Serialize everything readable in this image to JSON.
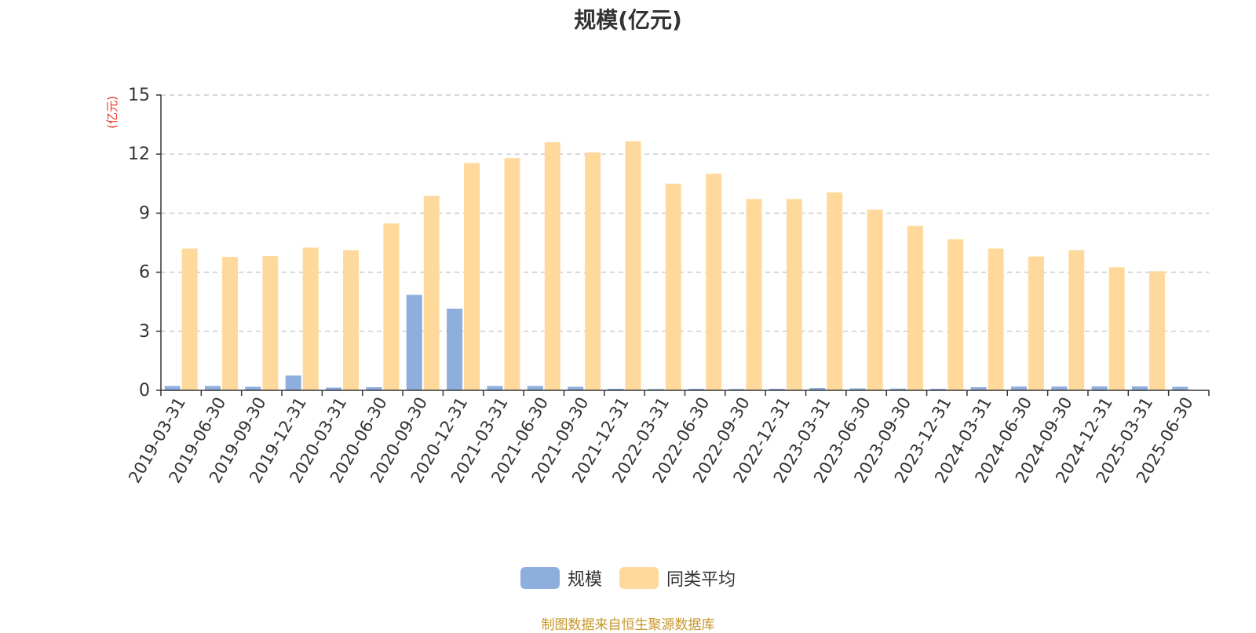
{
  "chart_data": {
    "type": "bar",
    "title": "规模(亿元)",
    "ylabel": "(亿元)",
    "ylim": [
      0,
      15
    ],
    "yticks": [
      0,
      3,
      6,
      9,
      12,
      15
    ],
    "grid": true,
    "legend_position": "bottom",
    "categories": [
      "2019-03-31",
      "2019-06-30",
      "2019-09-30",
      "2019-12-31",
      "2020-03-31",
      "2020-06-30",
      "2020-09-30",
      "2020-12-31",
      "2021-03-31",
      "2021-06-30",
      "2021-09-30",
      "2021-12-31",
      "2022-03-31",
      "2022-06-30",
      "2022-09-30",
      "2022-12-31",
      "2023-03-31",
      "2023-06-30",
      "2023-09-30",
      "2023-12-31",
      "2024-03-31",
      "2024-06-30",
      "2024-09-30",
      "2024-12-31",
      "2025-03-31",
      "2025-06-30"
    ],
    "series": [
      {
        "name": "规模",
        "color": "#8eaedd",
        "values": [
          0.22,
          0.22,
          0.18,
          0.75,
          0.14,
          0.16,
          4.85,
          4.15,
          0.22,
          0.22,
          0.18,
          0.08,
          0.07,
          0.08,
          0.07,
          0.08,
          0.12,
          0.1,
          0.09,
          0.08,
          0.16,
          0.19,
          0.19,
          0.2,
          0.2,
          0.18
        ]
      },
      {
        "name": "同类平均",
        "color": "#ffd99b",
        "values": [
          7.2,
          6.78,
          6.82,
          7.25,
          7.12,
          8.48,
          9.88,
          11.55,
          11.8,
          12.6,
          12.08,
          12.65,
          10.5,
          11.0,
          9.72,
          9.72,
          10.05,
          9.18,
          8.35,
          7.68,
          7.2,
          6.8,
          7.12,
          6.25,
          6.05,
          null
        ]
      }
    ]
  },
  "source_note": "制图数据来自恒生聚源数据库",
  "colors": {
    "axis": "#333333",
    "grid": "#cccccc",
    "ylabel": "#e8332a",
    "source": "#c8962a"
  }
}
